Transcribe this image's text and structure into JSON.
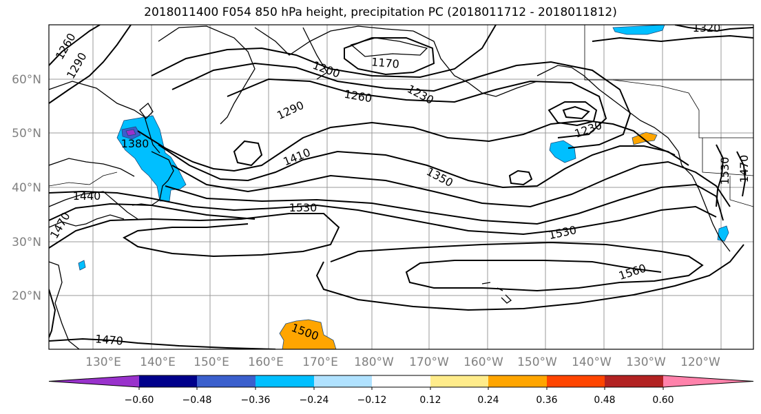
{
  "title": "2018011400 F054 850 hPa height, precipitation PC (2018011712 - 2018011812)",
  "map": {
    "lon_labels": [
      "130°E",
      "140°E",
      "150°E",
      "160°E",
      "170°E",
      "180°W",
      "170°W",
      "160°W",
      "150°W",
      "140°W",
      "130°W",
      "120°W"
    ],
    "lat_labels": [
      "60°N",
      "50°N",
      "40°N",
      "30°N",
      "20°N"
    ],
    "contour_labels": [
      {
        "text": "1260",
        "rot": -60
      },
      {
        "text": "1290",
        "rot": -60
      },
      {
        "text": "1200",
        "rot": 20
      },
      {
        "text": "1170",
        "rot": 5
      },
      {
        "text": "1260",
        "rot": 10
      },
      {
        "text": "1230",
        "rot": 28
      },
      {
        "text": "1290",
        "rot": -25
      },
      {
        "text": "1230",
        "rot": -20
      },
      {
        "text": "1380",
        "rot": 0
      },
      {
        "text": "1410",
        "rot": -22
      },
      {
        "text": "1350",
        "rot": 28
      },
      {
        "text": "1440",
        "rot": 0
      },
      {
        "text": "1530",
        "rot": 0
      },
      {
        "text": "1530",
        "rot": -12
      },
      {
        "text": "1560",
        "rot": -18
      },
      {
        "text": "1470",
        "rot": -60
      },
      {
        "text": "1470",
        "rot": 5
      },
      {
        "text": "1500",
        "rot": 20
      },
      {
        "text": "1530",
        "rot": -90
      },
      {
        "text": "1470",
        "rot": -90
      },
      {
        "text": "1320",
        "rot": 0
      }
    ]
  },
  "colorbar": {
    "colors": [
      "#9932CC",
      "#00008B",
      "#3A5FCD",
      "#00BFFF",
      "#B0E2FF",
      "#FFFFFF",
      "#FFEC8B",
      "#FFA500",
      "#FF4500",
      "#B22222",
      "#FF82AB"
    ],
    "ticks": [
      "−0.60",
      "−0.48",
      "−0.36",
      "−0.24",
      "−0.12",
      "0.12",
      "0.24",
      "0.36",
      "0.48",
      "0.60"
    ]
  }
}
